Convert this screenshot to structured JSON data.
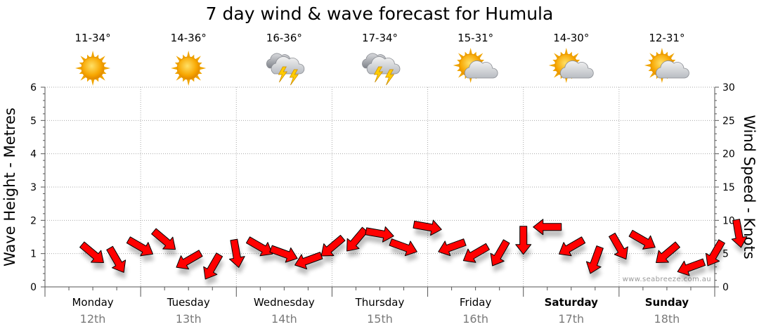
{
  "title": "7 day wind & wave forecast for Humula",
  "credit": "www.seabreeze.com.au",
  "days": [
    {
      "name": "Monday",
      "date": "12th",
      "temp": "11-34°",
      "icon": "sunny-icon",
      "bold": false
    },
    {
      "name": "Tuesday",
      "date": "13th",
      "temp": "14-36°",
      "icon": "sunny-icon",
      "bold": false
    },
    {
      "name": "Wednesday",
      "date": "14th",
      "temp": "16-36°",
      "icon": "thunderstorm-icon",
      "bold": false
    },
    {
      "name": "Thursday",
      "date": "15th",
      "temp": "17-34°",
      "icon": "thunderstorm-icon",
      "bold": false
    },
    {
      "name": "Friday",
      "date": "16th",
      "temp": "15-31°",
      "icon": "partly-cloudy-icon",
      "bold": false
    },
    {
      "name": "Saturday",
      "date": "17th",
      "temp": "14-30°",
      "icon": "partly-cloudy-icon",
      "bold": true
    },
    {
      "name": "Sunday",
      "date": "18th",
      "temp": "12-31°",
      "icon": "partly-cloudy-icon",
      "bold": true
    }
  ],
  "chart_data": {
    "type": "line",
    "left_axis": {
      "label": "Wave Height - Metres",
      "ylim": [
        0,
        6
      ],
      "ticks": [
        "0",
        "1",
        "2",
        "3",
        "4",
        "5",
        "6"
      ]
    },
    "right_axis": {
      "label": "Wind Speed - Knots",
      "ylim": [
        0,
        30
      ],
      "ticks": [
        "0",
        "5",
        "10",
        "15",
        "20",
        "25",
        "30"
      ]
    },
    "x_unit": "day",
    "grid": true,
    "series": [
      {
        "type": "arrows",
        "color": "#ff0000",
        "x": [
          0.0,
          0.25,
          0.5,
          0.75,
          1.0,
          1.25,
          1.5,
          1.75,
          2.0,
          2.25,
          2.5,
          2.75,
          3.0,
          3.25,
          3.5,
          3.75,
          4.0,
          4.25,
          4.5,
          4.75,
          5.0,
          5.25,
          5.5,
          5.75,
          6.0,
          6.25,
          6.5,
          6.75
        ],
        "values": [
          5,
          4,
          6,
          7,
          4,
          3,
          5,
          6,
          5,
          4,
          6,
          7,
          8,
          6,
          9,
          6,
          5,
          5,
          7,
          9,
          6,
          4,
          6,
          7,
          5,
          3,
          5,
          8
        ],
        "direction_deg": [
          40,
          60,
          30,
          40,
          150,
          120,
          80,
          30,
          20,
          160,
          140,
          130,
          10,
          20,
          10,
          160,
          150,
          120,
          90,
          180,
          150,
          110,
          60,
          30,
          140,
          160,
          120,
          80
        ]
      }
    ]
  },
  "colors": {
    "arrow": "#ff0000",
    "grid": "#999999",
    "date": "#7a7a7a"
  }
}
